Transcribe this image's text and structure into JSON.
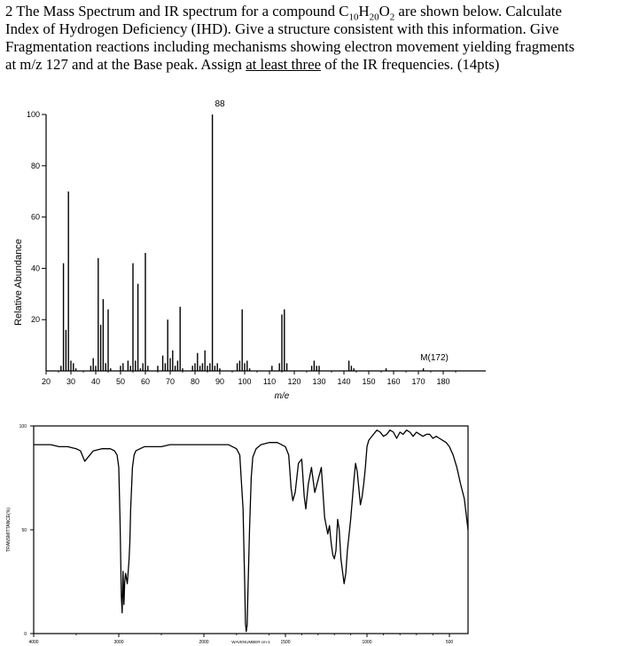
{
  "question": {
    "number": "2",
    "line1_a": "The Mass Spectrum and IR spectrum for a compound C",
    "sub1": "10",
    "mid1": "H",
    "sub2": "20",
    "mid2": "O",
    "sub3": "2",
    "line1_b": " are shown below.  Calculate",
    "line2": "Index of Hydrogen Deficiency (IHD).  Give a structure consistent with this information.  Give",
    "line3": "Fragmentation reactions including mechanisms showing electron movement yielding fragments",
    "line4_a": "at m/z 127 and at the Base peak.  Assign ",
    "line4_u": "at least three",
    "line4_b": " of the IR frequencies. (14pts)"
  },
  "chart_data": [
    {
      "type": "bar",
      "title": "",
      "xlabel": "m/e",
      "ylabel": "Relative Abundance",
      "xlim": [
        20,
        185
      ],
      "ylim": [
        0,
        100
      ],
      "xticks": [
        "20",
        "30",
        "40",
        "50",
        "60",
        "70",
        "80",
        "90",
        "100",
        "110",
        "120",
        "130",
        "140",
        "150",
        "160",
        "170",
        "180"
      ],
      "yticks": [
        "20",
        "40",
        "60",
        "80",
        "100"
      ],
      "annotations": [
        {
          "text": "88",
          "x": 88,
          "y": 100
        },
        {
          "text": "M(172)",
          "x": 172,
          "y": 0
        }
      ],
      "peaks": {
        "x": [
          26,
          27,
          28,
          29,
          30,
          31,
          32,
          38,
          39,
          40,
          41,
          42,
          43,
          44,
          45,
          46,
          50,
          51,
          53,
          54,
          55,
          56,
          57,
          58,
          59,
          60,
          61,
          65,
          67,
          68,
          69,
          70,
          71,
          72,
          73,
          74,
          75,
          79,
          80,
          81,
          82,
          83,
          84,
          85,
          86,
          87,
          88,
          89,
          90,
          97,
          98,
          99,
          100,
          101,
          102,
          111,
          114,
          115,
          116,
          117,
          127,
          128,
          129,
          130,
          142,
          143,
          144,
          157,
          172
        ],
        "y": [
          2,
          42,
          16,
          70,
          4,
          3,
          1,
          2,
          5,
          2,
          44,
          18,
          28,
          3,
          24,
          1,
          2,
          3,
          4,
          2,
          42,
          4,
          34,
          1,
          3,
          46,
          2,
          2,
          6,
          3,
          20,
          5,
          8,
          2,
          4,
          25,
          1,
          2,
          3,
          7,
          2,
          3,
          8,
          2,
          3,
          100,
          2,
          3,
          1,
          3,
          4,
          24,
          3,
          4,
          1,
          2,
          3,
          22,
          24,
          3,
          2,
          4,
          2,
          2,
          4,
          2,
          1,
          1,
          1
        ]
      }
    },
    {
      "type": "line",
      "title": "",
      "xlabel": "WAVENUMBER cm-1",
      "ylabel": "TRANSMITTANCE(%)",
      "xlim": [
        4000,
        400
      ],
      "ylim": [
        0,
        100
      ],
      "xticks": [
        "4000",
        "3000",
        "2000",
        "1500",
        "1000",
        "500"
      ],
      "yticks": [
        "0",
        "50",
        "100"
      ],
      "series": [
        {
          "x": [
            4000,
            3900,
            3800,
            3700,
            3600,
            3500,
            3450,
            3400,
            3300,
            3200,
            3100,
            3050,
            3020,
            3000,
            2985,
            2970,
            2960,
            2950,
            2940,
            2930,
            2920,
            2900,
            2880,
            2870,
            2860,
            2850,
            2840,
            2820,
            2800,
            2750,
            2700,
            2600,
            2500,
            2400,
            2300,
            2200,
            2100,
            2050,
            2000,
            1950,
            1900,
            1850,
            1800,
            1780,
            1760,
            1750,
            1745,
            1740,
            1735,
            1730,
            1720,
            1710,
            1700,
            1680,
            1650,
            1600,
            1550,
            1500,
            1480,
            1465,
            1455,
            1440,
            1420,
            1400,
            1385,
            1375,
            1360,
            1340,
            1320,
            1300,
            1280,
            1260,
            1240,
            1230,
            1220,
            1210,
            1200,
            1190,
            1180,
            1170,
            1160,
            1150,
            1140,
            1130,
            1120,
            1100,
            1080,
            1070,
            1060,
            1050,
            1040,
            1030,
            1020,
            1010,
            1000,
            990,
            980,
            960,
            940,
            920,
            900,
            880,
            860,
            840,
            820,
            800,
            780,
            760,
            740,
            720,
            700,
            680,
            660,
            640,
            620,
            600,
            580,
            560,
            540,
            520,
            500,
            480,
            460,
            440,
            420,
            400
          ],
          "y": [
            91,
            91,
            91,
            90,
            90,
            89,
            88,
            83,
            88,
            89,
            89,
            88,
            86,
            80,
            55,
            18,
            10,
            30,
            14,
            25,
            29,
            24,
            35,
            44,
            60,
            70,
            80,
            86,
            88,
            89,
            90,
            90,
            90,
            91,
            91,
            91,
            91,
            91,
            91,
            91,
            91,
            91,
            89,
            86,
            60,
            25,
            5,
            1,
            4,
            20,
            50,
            75,
            85,
            89,
            91,
            92,
            92,
            90,
            86,
            70,
            64,
            68,
            82,
            84,
            66,
            60,
            72,
            80,
            68,
            74,
            80,
            56,
            48,
            52,
            44,
            38,
            36,
            40,
            55,
            50,
            36,
            30,
            24,
            29,
            40,
            55,
            74,
            82,
            78,
            70,
            62,
            66,
            72,
            80,
            90,
            93,
            94,
            96,
            98,
            97,
            95,
            96,
            98,
            97,
            94,
            97,
            96,
            98,
            97,
            95,
            97,
            96,
            95,
            96,
            96,
            94,
            95,
            94,
            93,
            92,
            90,
            86,
            80,
            72,
            65,
            50
          ]
        }
      ]
    }
  ]
}
